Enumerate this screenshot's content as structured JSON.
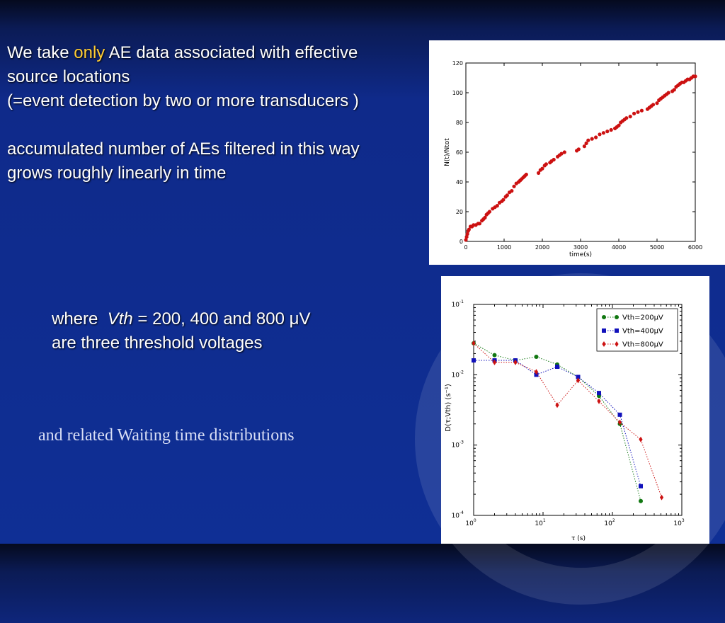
{
  "intro": {
    "line1_pre": "We take ",
    "line1_highlight": "only",
    "line1_post": " AE data associated with effective",
    "line2": "source locations",
    "line3": "(=event detection by two or more transducers )",
    "line4": "accumulated number of AEs filtered in this way",
    "line5": "grows roughly linearly in time",
    "highlight_color": "#ffcc33"
  },
  "where": {
    "word": "where",
    "var": "Vth",
    "eq": " = 200, 400 and 800 μV",
    "line2": "are three threshold voltages"
  },
  "waiting_text": "and related Waiting time distributions",
  "chart_data": [
    {
      "type": "scatter",
      "xlabel": "time(s)",
      "ylabel": "N(t)/Ntot",
      "xlim": [
        0,
        6000
      ],
      "ylim": [
        0,
        120
      ],
      "xticks": [
        "0",
        "1000",
        "2000",
        "3000",
        "4000",
        "5000",
        "6000"
      ],
      "yticks": [
        "0",
        "20",
        "40",
        "60",
        "80",
        "100",
        "120"
      ],
      "color": "#cc1111",
      "x": [
        0,
        20,
        40,
        60,
        80,
        120,
        160,
        200,
        260,
        320,
        360,
        420,
        460,
        500,
        540,
        580,
        620,
        700,
        760,
        820,
        880,
        940,
        980,
        1040,
        1080,
        1140,
        1200,
        1260,
        1320,
        1380,
        1420,
        1460,
        1500,
        1540,
        1580,
        1900,
        1950,
        2000,
        2060,
        2100,
        2200,
        2240,
        2300,
        2400,
        2450,
        2500,
        2580,
        2900,
        2950,
        3100,
        3150,
        3200,
        3300,
        3400,
        3500,
        3600,
        3700,
        3800,
        3900,
        3950,
        4000,
        4050,
        4100,
        4150,
        4200,
        4300,
        4400,
        4500,
        4600,
        4750,
        4800,
        4850,
        4900,
        5000,
        5050,
        5100,
        5150,
        5200,
        5250,
        5300,
        5400,
        5450,
        5500,
        5550,
        5600,
        5650,
        5700,
        5750,
        5800,
        5850,
        5900,
        5950,
        6000
      ],
      "y": [
        1,
        3,
        5,
        7,
        8,
        10,
        10,
        11,
        11,
        12,
        12,
        14,
        15,
        16,
        18,
        19,
        20,
        22,
        23,
        24,
        26,
        27,
        28,
        30,
        31,
        33,
        34,
        37,
        39,
        40,
        41,
        42,
        43,
        44,
        45,
        46,
        48,
        49,
        51,
        52,
        53,
        54,
        55,
        57,
        58,
        59,
        60,
        61,
        62,
        64,
        66,
        68,
        69,
        70,
        72,
        73,
        74,
        75,
        76,
        77,
        78,
        80,
        81,
        82,
        83,
        84,
        86,
        87,
        88,
        89,
        90,
        91,
        92,
        93,
        95,
        96,
        97,
        98,
        99,
        100,
        101,
        102,
        104,
        105,
        106,
        107,
        107,
        108,
        109,
        109,
        110,
        111,
        111
      ]
    },
    {
      "type": "line",
      "xscale": "log",
      "yscale": "log",
      "xlabel": "τ (s)",
      "ylabel": "D(τ;Vth) (s⁻¹)",
      "xlim": [
        1,
        1000
      ],
      "ylim": [
        0.0001,
        0.1
      ],
      "x_tick_bases": [
        "10",
        "10",
        "10",
        "10"
      ],
      "x_tick_exps": [
        "0",
        "1",
        "2",
        "3"
      ],
      "y_tick_bases": [
        "10",
        "10",
        "10",
        "10"
      ],
      "y_tick_exps": [
        "-4",
        "-3",
        "-2",
        "-1"
      ],
      "legend_position": "top-right",
      "series": [
        {
          "name": "Vth=200μV",
          "color": "#117711",
          "marker": "circle",
          "x": [
            1,
            2,
            4,
            8,
            16,
            32,
            64,
            128,
            256
          ],
          "y": [
            0.028,
            0.019,
            0.016,
            0.018,
            0.014,
            0.0093,
            0.005,
            0.002,
            0.00016
          ]
        },
        {
          "name": "Vth=400μV",
          "color": "#1111bb",
          "marker": "square",
          "x": [
            1,
            2,
            4,
            8,
            16,
            32,
            64,
            128,
            256
          ],
          "y": [
            0.016,
            0.016,
            0.016,
            0.01,
            0.013,
            0.0093,
            0.0055,
            0.0027,
            0.00026
          ]
        },
        {
          "name": "Vth=800μV",
          "color": "#cc1111",
          "marker": "diamond",
          "x": [
            1,
            2,
            4,
            8,
            16,
            32,
            64,
            128,
            256,
            512
          ],
          "y": [
            0.028,
            0.015,
            0.015,
            0.011,
            0.0037,
            0.0083,
            0.0042,
            0.0021,
            0.0012,
            0.00018
          ]
        }
      ]
    }
  ]
}
